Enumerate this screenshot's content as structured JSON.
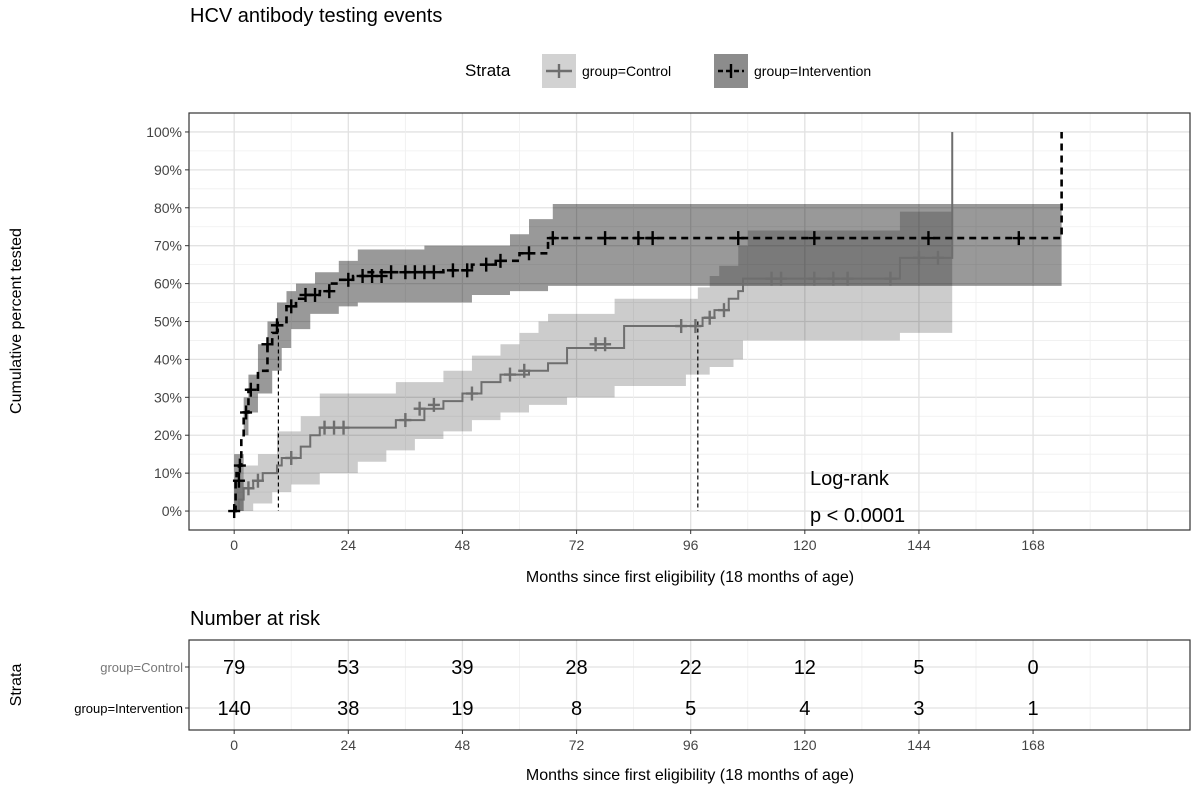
{
  "chart_data": {
    "type": "line",
    "title": "HCV antibody testing events",
    "xlabel": "Months since first eligibility (18 months of age)",
    "ylabel": "Cumulative percent tested",
    "xlim": [
      -9.5,
      201
    ],
    "ylim": [
      -5,
      105
    ],
    "x_ticks": [
      0,
      24,
      48,
      72,
      96,
      120,
      144,
      168
    ],
    "y_ticks": [
      0,
      10,
      20,
      30,
      40,
      50,
      60,
      70,
      80,
      90,
      100
    ],
    "y_tick_labels": [
      "0%",
      "10%",
      "20%",
      "30%",
      "40%",
      "50%",
      "60%",
      "70%",
      "80%",
      "90%",
      "100%"
    ],
    "grid": true,
    "legend": {
      "title": "Strata",
      "placement": "top"
    },
    "annotation": {
      "line1": "Log-rank",
      "line2": "p < 0.0001"
    },
    "series": [
      {
        "name": "group=Control",
        "color": "#6e6e6e",
        "band_color": "#000000",
        "line_style": "solid",
        "steps": [
          [
            0,
            0
          ],
          [
            1,
            3
          ],
          [
            2,
            6
          ],
          [
            4,
            8
          ],
          [
            6,
            10
          ],
          [
            9,
            12
          ],
          [
            10,
            14
          ],
          [
            14,
            17
          ],
          [
            16,
            20
          ],
          [
            18,
            22
          ],
          [
            32,
            22
          ],
          [
            34,
            24
          ],
          [
            40,
            27
          ],
          [
            44,
            29
          ],
          [
            48,
            31
          ],
          [
            52,
            34
          ],
          [
            56,
            36
          ],
          [
            62,
            37
          ],
          [
            66,
            39
          ],
          [
            70,
            43
          ],
          [
            82,
            44
          ],
          [
            82,
            48.8
          ],
          [
            97.5,
            48.8
          ],
          [
            98.5,
            51
          ],
          [
            101,
            53
          ],
          [
            104,
            56
          ],
          [
            106,
            58
          ],
          [
            107,
            61.3
          ],
          [
            140,
            61.3
          ],
          [
            140,
            66.8
          ],
          [
            151,
            66.8
          ],
          [
            151,
            100
          ]
        ],
        "ci_upper": [
          [
            0,
            8
          ],
          [
            2,
            12
          ],
          [
            5,
            15
          ],
          [
            9,
            21
          ],
          [
            14,
            25
          ],
          [
            18,
            31
          ],
          [
            34,
            34
          ],
          [
            44,
            37
          ],
          [
            50,
            41
          ],
          [
            56,
            44
          ],
          [
            60,
            47
          ],
          [
            64,
            50
          ],
          [
            66,
            52
          ],
          [
            80,
            56
          ],
          [
            97.5,
            59
          ],
          [
            100,
            62
          ],
          [
            102,
            64.7
          ],
          [
            106,
            70
          ],
          [
            108,
            74
          ],
          [
            140,
            79
          ],
          [
            151,
            79
          ]
        ],
        "ci_lower": [
          [
            0,
            0
          ],
          [
            4,
            2
          ],
          [
            8,
            5
          ],
          [
            12,
            7
          ],
          [
            18,
            10
          ],
          [
            26,
            13
          ],
          [
            32,
            16
          ],
          [
            38,
            19
          ],
          [
            44,
            21
          ],
          [
            50,
            24
          ],
          [
            56,
            26
          ],
          [
            62,
            28
          ],
          [
            70,
            30
          ],
          [
            80,
            33
          ],
          [
            95,
            36
          ],
          [
            100,
            38
          ],
          [
            105,
            40
          ],
          [
            107,
            45
          ],
          [
            140,
            47
          ],
          [
            151,
            47
          ]
        ],
        "censored": [
          [
            3,
            6
          ],
          [
            5,
            8
          ],
          [
            12,
            14
          ],
          [
            19,
            22
          ],
          [
            21,
            22
          ],
          [
            23,
            22
          ],
          [
            36,
            24
          ],
          [
            39,
            27
          ],
          [
            42,
            28
          ],
          [
            50,
            31
          ],
          [
            58,
            36
          ],
          [
            61,
            37
          ],
          [
            76,
            44
          ],
          [
            78,
            44
          ],
          [
            94,
            48.8
          ],
          [
            97,
            48.8
          ],
          [
            100,
            51
          ],
          [
            103,
            53
          ],
          [
            113,
            61.3
          ],
          [
            115,
            61.3
          ],
          [
            122,
            61.3
          ],
          [
            126,
            61.3
          ],
          [
            129,
            61.3
          ],
          [
            138,
            61.3
          ],
          [
            144,
            66.8
          ],
          [
            148,
            66.8
          ]
        ]
      },
      {
        "name": "group=Intervention",
        "color": "#000000",
        "band_color": "#000000",
        "line_style": "dashed",
        "steps": [
          [
            0,
            0
          ],
          [
            0.3,
            8
          ],
          [
            0.5,
            10
          ],
          [
            1,
            12
          ],
          [
            1.5,
            20
          ],
          [
            2,
            26
          ],
          [
            3,
            32
          ],
          [
            5,
            37
          ],
          [
            7,
            44
          ],
          [
            8,
            47
          ],
          [
            9,
            49
          ],
          [
            11,
            54
          ],
          [
            13,
            56
          ],
          [
            15,
            57
          ],
          [
            18,
            58
          ],
          [
            20,
            60
          ],
          [
            22,
            61
          ],
          [
            25,
            62
          ],
          [
            28,
            63
          ],
          [
            44,
            63.5
          ],
          [
            50,
            65
          ],
          [
            55,
            66
          ],
          [
            60,
            68
          ],
          [
            66,
            72
          ],
          [
            174,
            72
          ],
          [
            174,
            100
          ]
        ],
        "ci_upper": [
          [
            0,
            15
          ],
          [
            2,
            30
          ],
          [
            3,
            36
          ],
          [
            5,
            44
          ],
          [
            7,
            50
          ],
          [
            9,
            55
          ],
          [
            11,
            58
          ],
          [
            13,
            60
          ],
          [
            17,
            63
          ],
          [
            22,
            66
          ],
          [
            26,
            69
          ],
          [
            40,
            70
          ],
          [
            58,
            73
          ],
          [
            62,
            77
          ],
          [
            67,
            81
          ],
          [
            174,
            81
          ]
        ],
        "ci_lower": [
          [
            0,
            0
          ],
          [
            2,
            20
          ],
          [
            3,
            26
          ],
          [
            5,
            31
          ],
          [
            8,
            37
          ],
          [
            10,
            43
          ],
          [
            12,
            48
          ],
          [
            16,
            52
          ],
          [
            22,
            54
          ],
          [
            26,
            55
          ],
          [
            50,
            57
          ],
          [
            58,
            58
          ],
          [
            66,
            59.4
          ],
          [
            174,
            59.4
          ]
        ],
        "censored": [
          [
            0,
            0
          ],
          [
            1,
            8
          ],
          [
            1.2,
            12
          ],
          [
            2.5,
            26
          ],
          [
            3.5,
            32
          ],
          [
            7,
            44
          ],
          [
            9,
            49
          ],
          [
            12,
            54
          ],
          [
            15,
            57
          ],
          [
            17,
            57
          ],
          [
            20,
            58
          ],
          [
            24,
            61
          ],
          [
            27,
            62
          ],
          [
            29,
            62
          ],
          [
            31,
            62
          ],
          [
            33,
            63
          ],
          [
            36,
            63
          ],
          [
            38,
            63
          ],
          [
            40,
            63
          ],
          [
            42,
            63
          ],
          [
            46,
            63.5
          ],
          [
            49,
            63.5
          ],
          [
            53,
            65
          ],
          [
            56,
            66
          ],
          [
            62,
            68
          ],
          [
            67,
            72
          ],
          [
            78,
            72
          ],
          [
            85,
            72
          ],
          [
            88,
            72
          ],
          [
            106,
            72
          ],
          [
            122,
            72
          ],
          [
            146,
            72
          ],
          [
            165,
            72
          ]
        ]
      }
    ],
    "median_lines": [
      9.3,
      97.5
    ]
  },
  "risk_table": {
    "title": "Number at risk",
    "ylabel": "Strata",
    "xlabel": "Months since first eligibility (18 months of age)",
    "times": [
      0,
      24,
      48,
      72,
      96,
      120,
      144,
      168
    ],
    "rows": [
      {
        "label": "group=Control",
        "color": "#777777",
        "values": [
          79,
          53,
          39,
          28,
          22,
          12,
          5,
          0
        ]
      },
      {
        "label": "group=Intervention",
        "color": "#000000",
        "values": [
          140,
          38,
          19,
          8,
          5,
          4,
          3,
          1
        ]
      }
    ]
  }
}
